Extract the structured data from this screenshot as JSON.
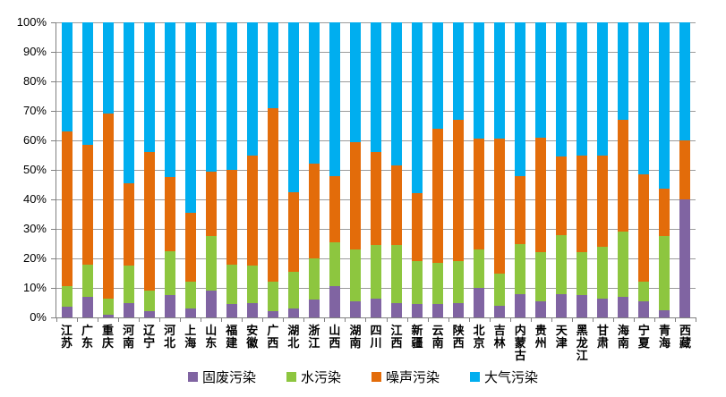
{
  "chart_data": {
    "type": "bar",
    "subtype": "stacked-100-percent",
    "title": "",
    "xlabel": "",
    "ylabel": "",
    "grid": true,
    "legend_position": "bottom",
    "y_axis": {
      "min": 0,
      "max": 100,
      "step": 10,
      "tick_labels": [
        "0%",
        "10%",
        "20%",
        "30%",
        "40%",
        "50%",
        "60%",
        "70%",
        "80%",
        "90%",
        "100%"
      ]
    },
    "categories": [
      "江苏",
      "广东",
      "重庆",
      "河南",
      "辽宁",
      "河北",
      "上海",
      "山东",
      "福建",
      "安徽",
      "广西",
      "湖北",
      "浙江",
      "山西",
      "湖南",
      "四川",
      "江西",
      "新疆",
      "云南",
      "陕西",
      "北京",
      "吉林",
      "内蒙古",
      "贵州",
      "天津",
      "黑龙江",
      "甘肃",
      "海南",
      "宁夏",
      "青海",
      "西藏"
    ],
    "series": [
      {
        "id": "solid-waste",
        "name": "固废污染",
        "color": "#8064A2",
        "values": [
          3.5,
          7,
          1,
          5,
          2,
          7.5,
          3,
          9,
          4.5,
          5,
          2,
          3,
          6,
          10.5,
          5.5,
          6.5,
          5,
          4.5,
          4.5,
          5,
          10,
          4,
          8,
          5.5,
          8,
          7.5,
          6.5,
          7,
          5.5,
          2.5,
          40
        ]
      },
      {
        "id": "water",
        "name": "水污染",
        "color": "#8DC63F",
        "values": [
          7,
          11,
          5.5,
          12.5,
          7,
          15,
          9,
          18.5,
          13.5,
          12.5,
          10,
          12.5,
          14,
          15,
          17.5,
          18,
          19.5,
          14.5,
          14,
          14,
          13,
          11,
          17,
          16.5,
          20,
          14.5,
          17.5,
          22,
          6.5,
          25,
          0
        ]
      },
      {
        "id": "noise",
        "name": "噪声污染",
        "color": "#E36C0A",
        "values": [
          52.5,
          40.5,
          62.5,
          28,
          47,
          25,
          23.5,
          22,
          32,
          37.5,
          59,
          27,
          32,
          22.5,
          36.5,
          31.5,
          27,
          23,
          45.5,
          48,
          37.5,
          45.5,
          23,
          39,
          26.5,
          33,
          31,
          38,
          36.5,
          16,
          20
        ]
      },
      {
        "id": "air",
        "name": "大气污染",
        "color": "#00AEEF",
        "values": [
          37,
          41.5,
          31,
          54.5,
          44,
          52.5,
          64.5,
          50.5,
          50,
          45,
          29,
          57.5,
          48,
          52,
          40.5,
          44,
          48.5,
          58,
          36,
          33,
          39.5,
          39.5,
          52,
          39,
          45.5,
          45,
          45,
          33,
          51.5,
          56.5,
          40
        ]
      }
    ]
  },
  "colors": {
    "background": "#FFFFFF",
    "gridline": "#9B9B9B",
    "axis": "#808080",
    "text": "#000000"
  }
}
